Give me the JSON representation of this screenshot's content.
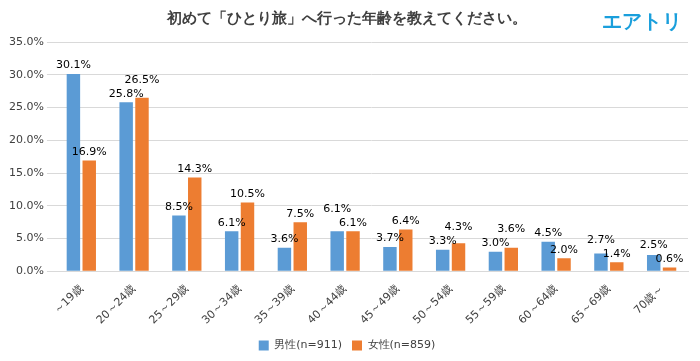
{
  "chart_data": {
    "type": "bar",
    "title": "初めて「ひとり旅」へ行った年齢を教えてください。",
    "annotation": "エアトリ",
    "categories": [
      "～19歳",
      "20～24歳",
      "25～29歳",
      "30～34歳",
      "35～39歳",
      "40～44歳",
      "45～49歳",
      "50～54歳",
      "55～59歳",
      "60～64歳",
      "65～69歳",
      "70歳～"
    ],
    "series": [
      {
        "name": "男性(n=911)",
        "color": "#5b9bd5",
        "values": [
          30.1,
          25.8,
          8.5,
          6.1,
          3.6,
          6.1,
          3.7,
          3.3,
          3.0,
          4.5,
          2.7,
          2.5
        ],
        "value_labels": [
          "30.1%",
          "25.8%",
          "8.5%",
          "6.1%",
          "3.6%",
          "6.1%",
          "3.7%",
          "3.3%",
          "3.0%",
          "4.5%",
          "2.7%",
          "2.5%"
        ]
      },
      {
        "name": "女性(n=859)",
        "color": "#ed7d31",
        "values": [
          16.9,
          26.5,
          14.3,
          10.5,
          7.5,
          6.1,
          6.4,
          4.3,
          3.6,
          2.0,
          1.4,
          0.6
        ],
        "value_labels": [
          "16.9%",
          "26.5%",
          "14.3%",
          "10.5%",
          "7.5%",
          "6.1%",
          "6.4%",
          "4.3%",
          "3.6%",
          "2.0%",
          "1.4%",
          "0.6%"
        ]
      }
    ],
    "ylim": [
      0,
      35
    ],
    "yticks": [
      {
        "value": 0,
        "label": "0.0%"
      },
      {
        "value": 5,
        "label": "5.0%"
      },
      {
        "value": 10,
        "label": "10.0%"
      },
      {
        "value": 15,
        "label": "15.0%"
      },
      {
        "value": 20,
        "label": "20.0%"
      },
      {
        "value": 25,
        "label": "25.0%"
      },
      {
        "value": 30,
        "label": "30.0%"
      },
      {
        "value": 35,
        "label": "35.0%"
      }
    ],
    "grid": true,
    "legend": "bottom",
    "data_labels": true
  }
}
